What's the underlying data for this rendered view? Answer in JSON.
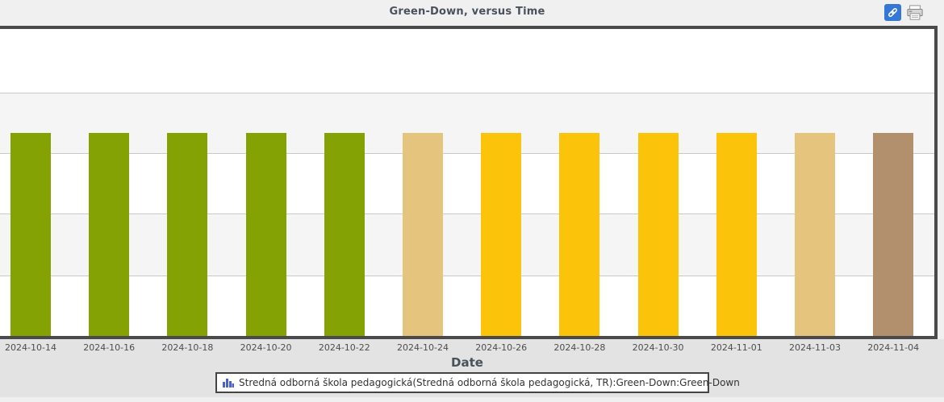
{
  "header": {
    "title": "Green-Down, versus Time",
    "icons": [
      {
        "name": "link-icon",
        "style": "blue-square-chain-link"
      },
      {
        "name": "printer-icon",
        "style": "gray-printer"
      }
    ]
  },
  "chart_data": {
    "type": "bar",
    "title": "Green-Down, versus Time",
    "xlabel": "Date",
    "ylabel": "",
    "categories": [
      "2024-10-14",
      "2024-10-16",
      "2024-10-18",
      "2024-10-20",
      "2024-10-22",
      "2024-10-24",
      "2024-10-26",
      "2024-10-28",
      "2024-10-30",
      "2024-11-01",
      "2024-11-03",
      "2024-11-04"
    ],
    "series": [
      {
        "name": "Stredná odborná škola pedagogická(Stredná odborná škola pedagogická, TR):Green-Down:Green-Down",
        "values": [
          1,
          1,
          1,
          1,
          1,
          1,
          1,
          1,
          1,
          1,
          1,
          1
        ]
      }
    ],
    "bar_colors": [
      "#85a205",
      "#85a205",
      "#85a205",
      "#85a205",
      "#85a205",
      "#e5c47d",
      "#fbc40a",
      "#fbc40a",
      "#fbc40a",
      "#fbc40a",
      "#e5c47d",
      "#b28f6d"
    ],
    "color_key": {
      "green": "#85a205",
      "tan": "#e5c47d",
      "amber": "#fbc40a",
      "brown": "#b28f6d"
    },
    "y_axis": {
      "tick_labels_visible": false,
      "gridline_count": 4
    },
    "grid": true,
    "legend_position": "bottom",
    "layout_hint": {
      "all_bars_equal_height": true,
      "bar_top_fraction_of_plot": 0.338
    }
  },
  "legend": {
    "icon": "bar-chart-icon",
    "label": "Stredná odborná škola pedagogická(Stredná odborná škola pedagogická, TR):Green-Down:Green-Down"
  }
}
